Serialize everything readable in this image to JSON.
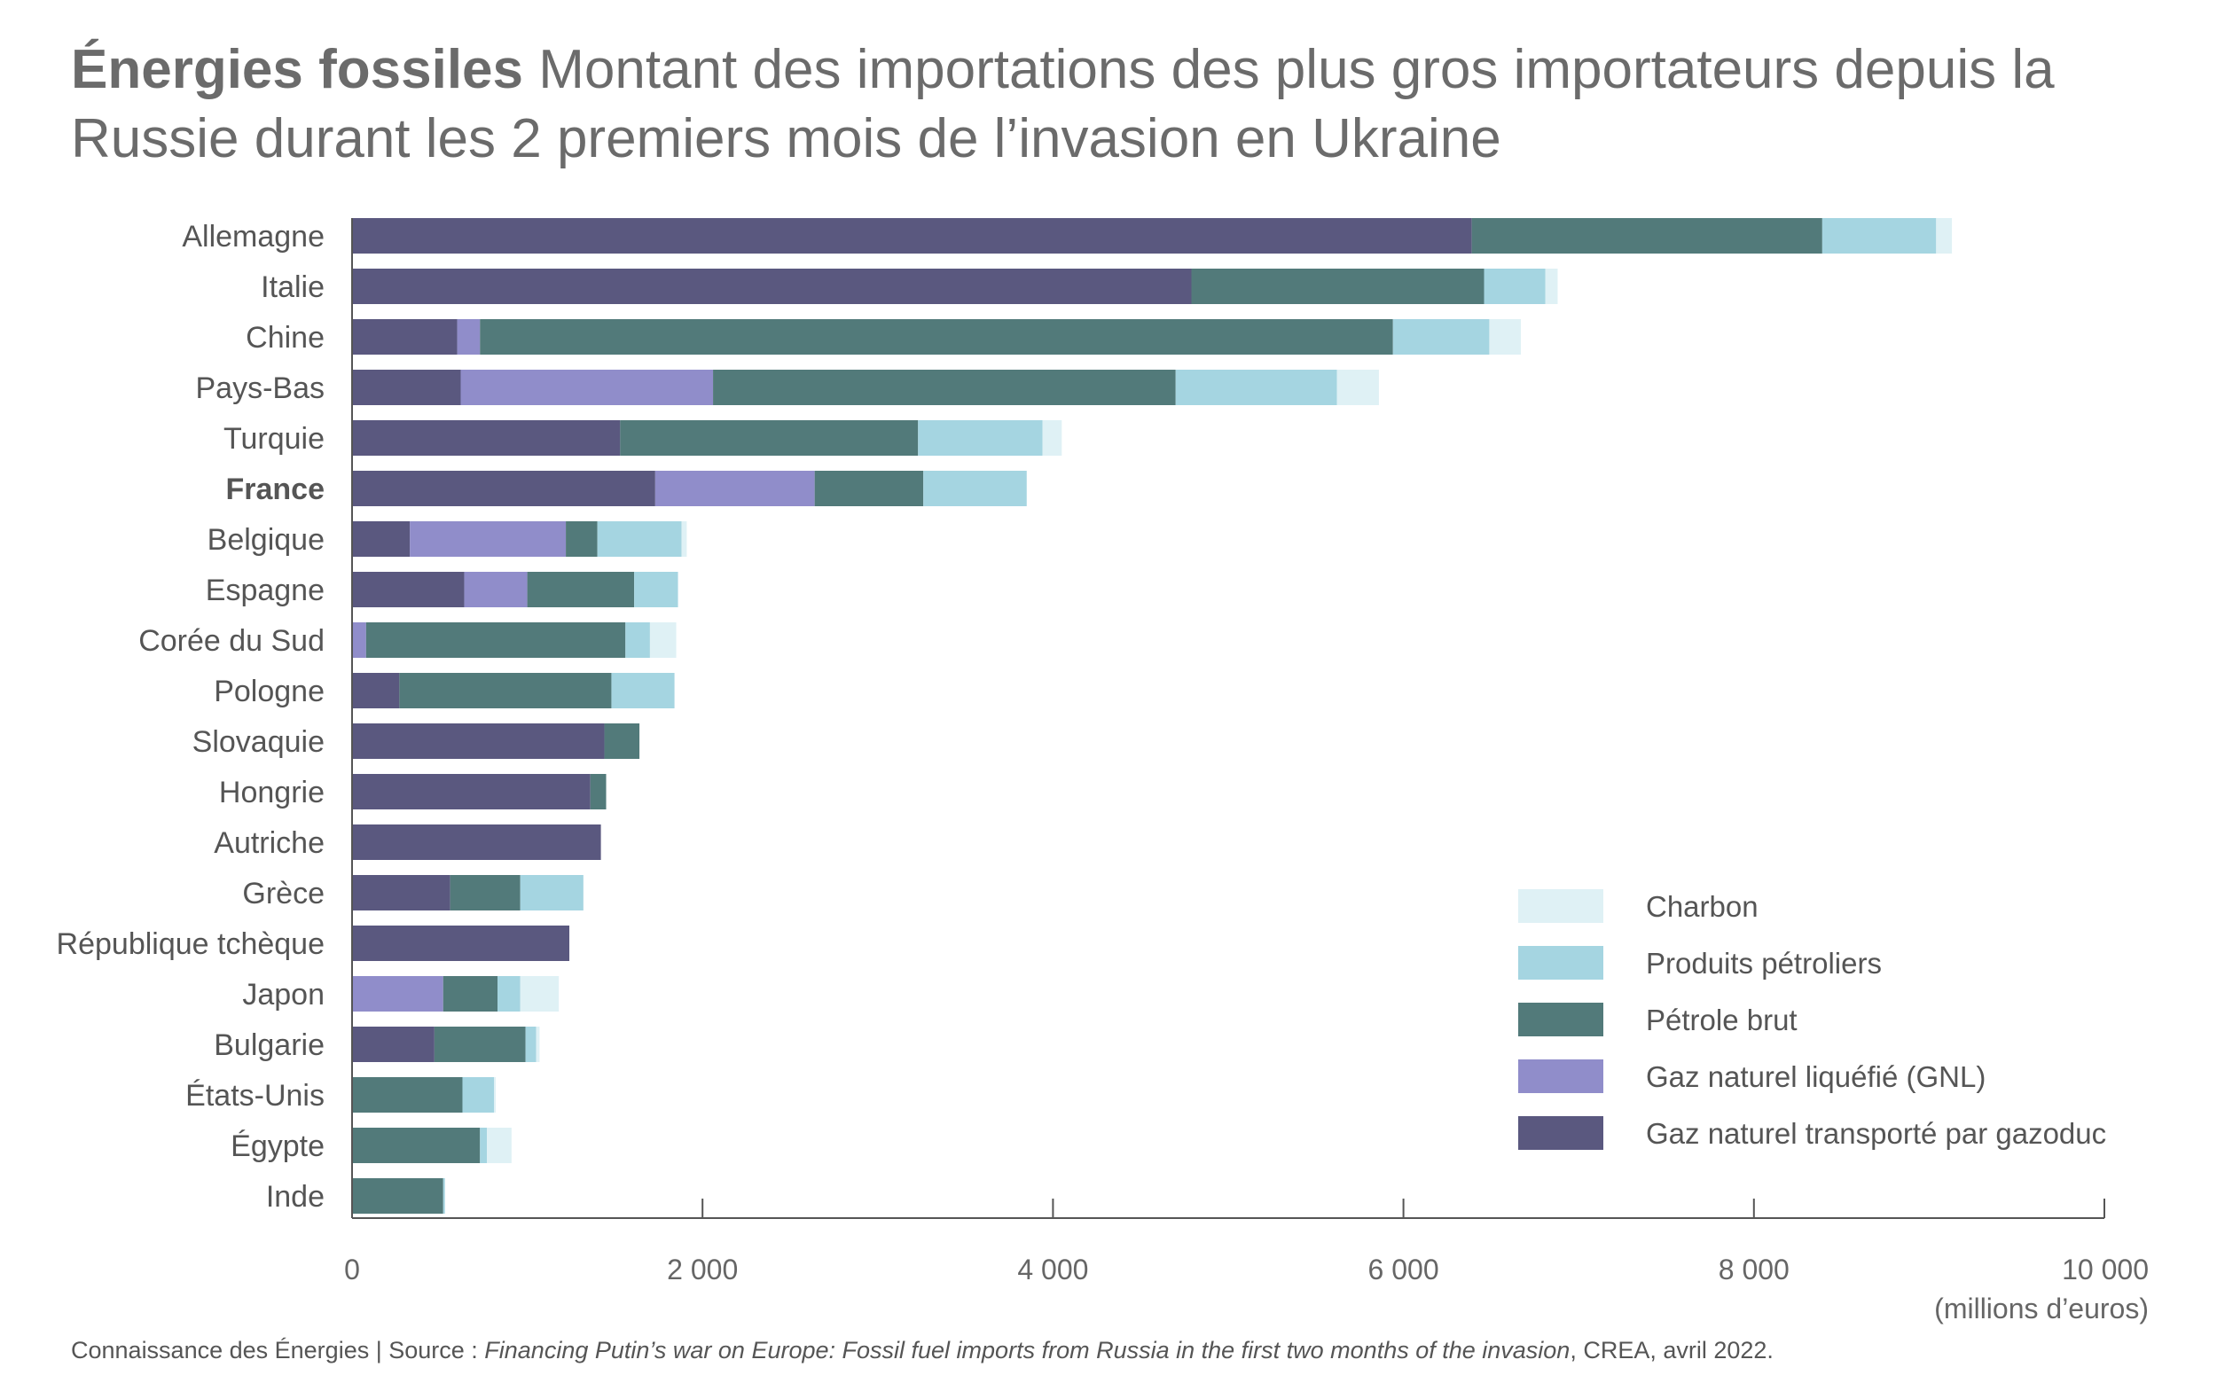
{
  "title": {
    "bold": "Énergies fossiles",
    "rest": " Montant des importations des plus gros importateurs depuis la Russie durant les 2 premiers mois de l’invasion en Ukraine"
  },
  "source": {
    "prefix": "Connaissance des Énergies | Source : ",
    "italic": "Financing Putin’s war on Europe: Fossil fuel imports from Russia in the first two months of the invasion",
    "suffix": ", CREA, avril 2022."
  },
  "colors": {
    "gazoduc": "#5a587f",
    "gnl": "#908dca",
    "petrole": "#527a7a",
    "produits": "#a5d5e1",
    "charbon": "#dff1f5",
    "highlight": "#e0622a",
    "axis": "#555555"
  },
  "chart_data": {
    "type": "bar",
    "orientation": "horizontal",
    "stacked": true,
    "title": "Énergies fossiles Montant des importations des plus gros importateurs depuis la Russie durant les 2 premiers mois de l’invasion en Ukraine",
    "xlabel": "(millions d’euros)",
    "ylabel": "",
    "xlim": [
      0,
      10000
    ],
    "xticks": [
      0,
      2000,
      4000,
      6000,
      8000,
      10000
    ],
    "xtick_labels": [
      "0",
      "2 000",
      "4 000",
      "6 000",
      "8 000",
      "10 000"
    ],
    "highlight": "France",
    "legend_position": "bottom-right",
    "categories": [
      "Allemagne",
      "Italie",
      "Chine",
      "Pays-Bas",
      "Turquie",
      "France",
      "Belgique",
      "Espagne",
      "Corée du Sud",
      "Pologne",
      "Slovaquie",
      "Hongrie",
      "Autriche",
      "Grèce",
      "République tchèque",
      "Japon",
      "Bulgarie",
      "États-Unis",
      "Égypte",
      "Inde"
    ],
    "series": [
      {
        "name": "Gaz naturel transporté par gazoduc",
        "key": "gazoduc",
        "values": [
          6390,
          4790,
          600,
          620,
          1530,
          1730,
          330,
          640,
          0,
          270,
          1440,
          1360,
          1420,
          560,
          1240,
          0,
          470,
          0,
          0,
          0
        ]
      },
      {
        "name": "Gaz naturel liquéfié (GNL)",
        "key": "gnl",
        "values": [
          0,
          0,
          130,
          1440,
          0,
          910,
          890,
          360,
          80,
          0,
          0,
          0,
          0,
          0,
          0,
          520,
          0,
          0,
          0,
          0
        ]
      },
      {
        "name": "Pétrole brut",
        "key": "petrole",
        "values": [
          2000,
          1670,
          5210,
          2640,
          1700,
          620,
          180,
          610,
          1480,
          1210,
          200,
          90,
          0,
          400,
          0,
          310,
          520,
          630,
          730,
          520
        ]
      },
      {
        "name": "Produits pétroliers",
        "key": "produits",
        "values": [
          650,
          350,
          550,
          920,
          710,
          590,
          480,
          250,
          140,
          360,
          0,
          0,
          0,
          360,
          0,
          130,
          60,
          180,
          40,
          10
        ]
      },
      {
        "name": "Charbon",
        "key": "charbon",
        "values": [
          90,
          70,
          180,
          240,
          110,
          0,
          30,
          0,
          150,
          0,
          0,
          0,
          0,
          0,
          0,
          220,
          20,
          10,
          140,
          0
        ]
      }
    ],
    "legend": [
      "Charbon",
      "Produits pétroliers",
      "Pétrole brut",
      "Gaz naturel liquéfié (GNL)",
      "Gaz naturel transporté par gazoduc"
    ]
  }
}
